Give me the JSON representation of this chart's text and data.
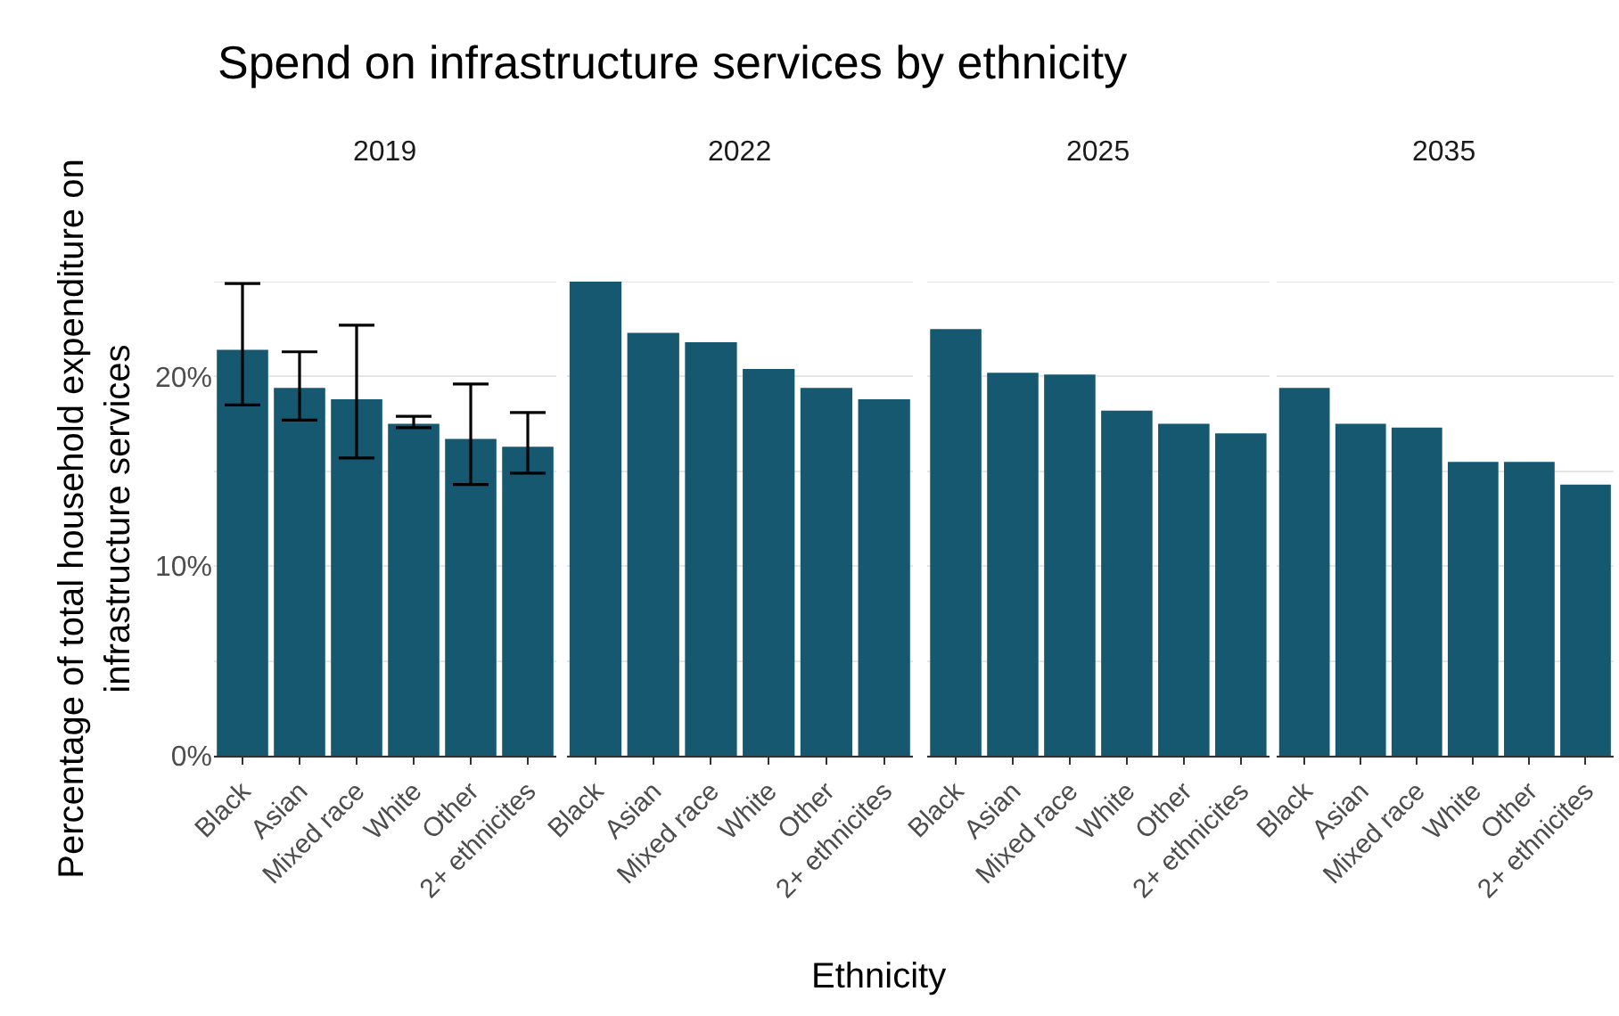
{
  "chart_data": [
    {
      "type": "bar",
      "title": "Spend on infrastructure services by ethnicity",
      "subtitle": "2019",
      "ylabel": "Percentage of total household expenditure on infrastructure services",
      "categories": [
        "Black",
        "Asian",
        "Mixed race",
        "White",
        "Other",
        "2+ ethnicites"
      ],
      "values": [
        21.4,
        19.4,
        18.8,
        17.5,
        16.7,
        16.3
      ],
      "errors": [
        [
          18.5,
          24.9
        ],
        [
          17.7,
          21.3
        ],
        [
          15.7,
          22.7
        ],
        [
          17.3,
          17.9
        ],
        [
          14.3,
          19.6
        ],
        [
          14.9,
          18.1
        ]
      ],
      "color": "#155870",
      "ylim": [
        0,
        25
      ],
      "yticks": [
        {
          "value": 0,
          "label": "0%"
        },
        {
          "value": 5,
          "label": null
        },
        {
          "value": 10,
          "label": "10%"
        },
        {
          "value": 15,
          "label": null
        },
        {
          "value": 20,
          "label": "20%"
        },
        {
          "value": 25,
          "label": null
        }
      ],
      "grid": "y"
    },
    {
      "type": "bar",
      "subtitle": "2022",
      "xlabel": "Ethnicity",
      "categories": [
        "Black",
        "Asian",
        "Mixed race",
        "White",
        "Other",
        "2+ ethnicites"
      ],
      "values": [
        25.0,
        22.3,
        21.8,
        20.4,
        19.4,
        18.8
      ],
      "color": "#155870",
      "ylim": [
        0,
        25
      ],
      "yticks": [
        {
          "value": 0,
          "label": null
        },
        {
          "value": 5,
          "label": null
        },
        {
          "value": 10,
          "label": null
        },
        {
          "value": 15,
          "label": null
        },
        {
          "value": 20,
          "label": null
        },
        {
          "value": 25,
          "label": null
        }
      ],
      "grid": "y",
      "tick_labels": "x"
    },
    {
      "type": "bar",
      "subtitle": "2025",
      "categories": [
        "Black",
        "Asian",
        "Mixed race",
        "White",
        "Other",
        "2+ ethnicites"
      ],
      "values": [
        22.5,
        20.2,
        20.1,
        18.2,
        17.5,
        17.0
      ],
      "color": "#155870",
      "ylim": [
        0,
        25
      ],
      "yticks": [
        {
          "value": 0,
          "label": null
        },
        {
          "value": 5,
          "label": null
        },
        {
          "value": 10,
          "label": null
        },
        {
          "value": 15,
          "label": null
        },
        {
          "value": 20,
          "label": null
        },
        {
          "value": 25,
          "label": null
        }
      ],
      "grid": "y",
      "tick_labels": "x"
    },
    {
      "type": "bar",
      "subtitle": "2035",
      "categories": [
        "Black",
        "Asian",
        "Mixed race",
        "White",
        "Other",
        "2+ ethnicites"
      ],
      "values": [
        19.4,
        17.5,
        17.3,
        15.5,
        15.5,
        14.3
      ],
      "color": "#155870",
      "ylim": [
        0,
        25
      ],
      "yticks": [
        {
          "value": 0,
          "label": null
        },
        {
          "value": 5,
          "label": null
        },
        {
          "value": 10,
          "label": null
        },
        {
          "value": 15,
          "label": null
        },
        {
          "value": 20,
          "label": null
        },
        {
          "value": 25,
          "label": null
        }
      ],
      "grid": "y",
      "tick_labels": "x"
    }
  ]
}
